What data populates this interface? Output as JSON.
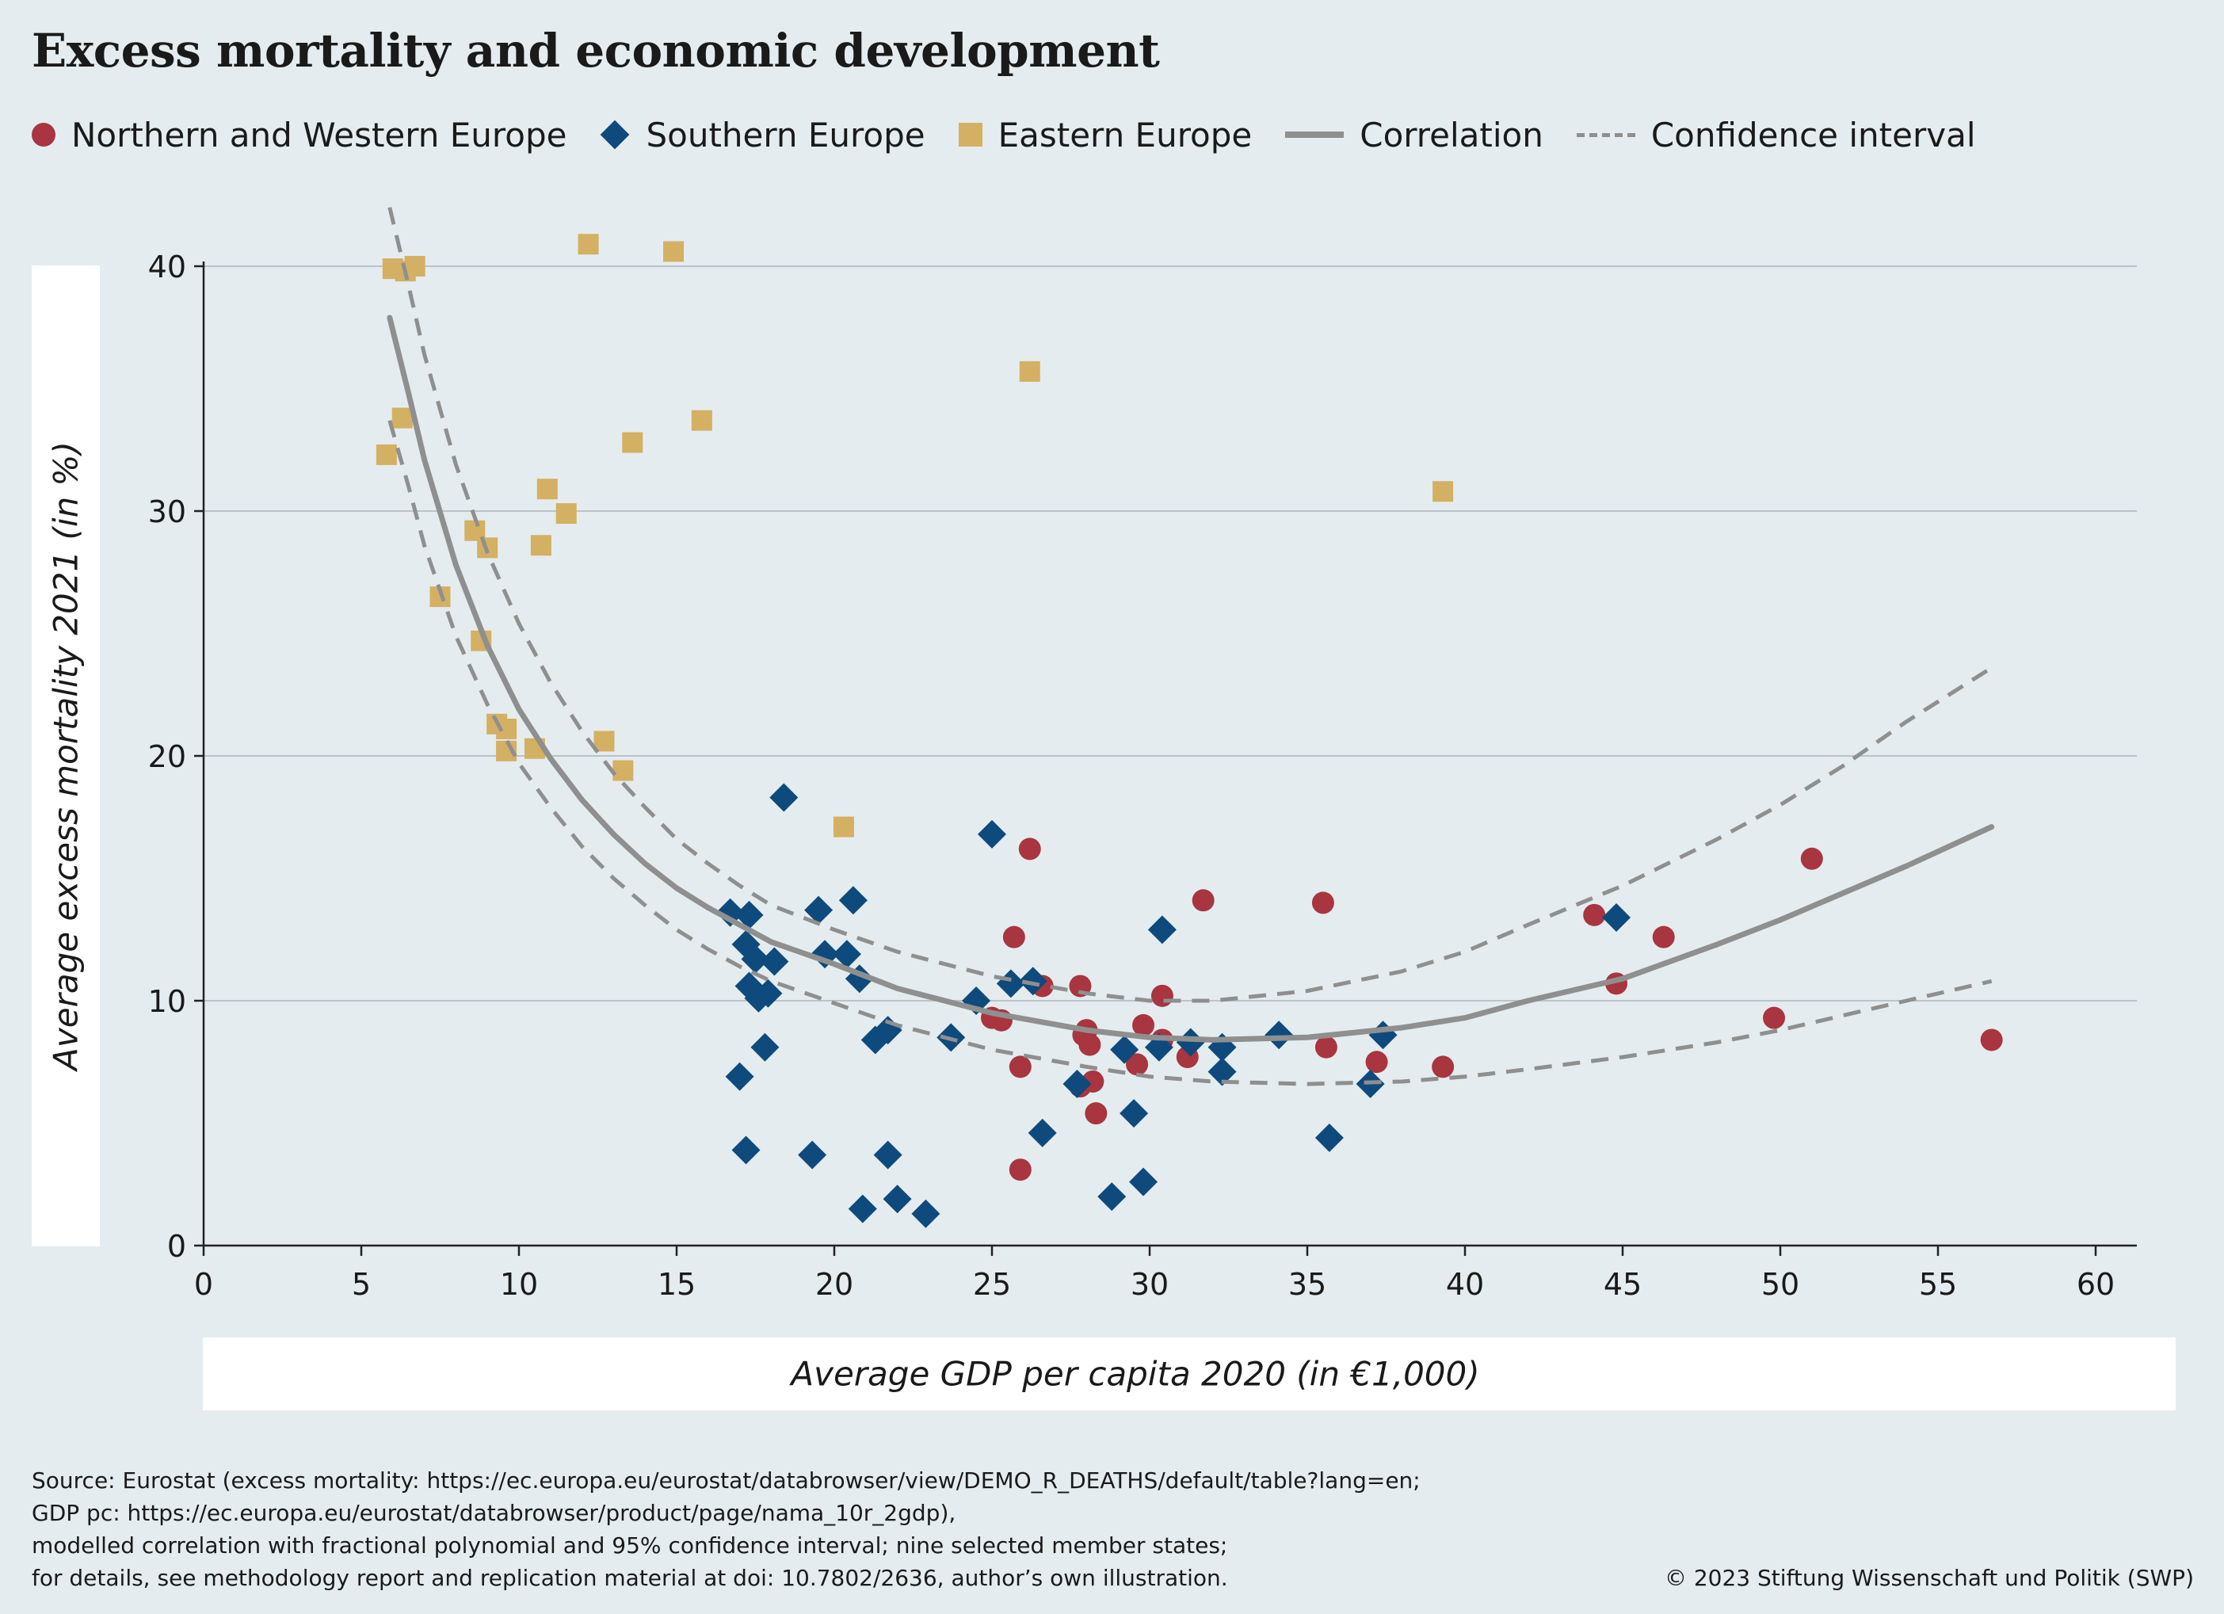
{
  "title": "Excess mortality and economic development",
  "legend": {
    "nw": "Northern and Western Europe",
    "south": "Southern Europe",
    "east": "Eastern Europe",
    "corr": "Correlation",
    "ci": "Confidence interval"
  },
  "colors": {
    "nw": "#a8353f",
    "south": "#0f4a7d",
    "east": "#d4b063",
    "curve": "#8f8f8f",
    "grid": "#b9c3c8",
    "axis": "#222222"
  },
  "source": [
    "Source: Eurostat (excess mortality: https://ec.europa.eu/eurostat/databrowser/view/DEMO_R_DEATHS/default/table?lang=en;",
    "GDP pc: https://ec.europa.eu/eurostat/databrowser/product/page/nama_10r_2gdp),",
    "modelled correlation with fractional polynomial and 95% confidence interval; nine selected member states;",
    "for details, see methodology report and replication material at doi: 10.7802/2636, author’s own illustration."
  ],
  "copyright": "© 2023 Stiftung Wissenschaft und Politik (SWP)",
  "chart_data": {
    "type": "scatter",
    "xlabel": "Average GDP per capita 2020 (in €1,000)",
    "ylabel": "Average excess mortality 2021 (in %)",
    "xlim": [
      0,
      61
    ],
    "ylim": [
      0,
      42
    ],
    "xticks": [
      0,
      5,
      10,
      15,
      20,
      25,
      30,
      35,
      40,
      45,
      50,
      55,
      60
    ],
    "yticks": [
      0,
      10,
      20,
      30,
      40
    ],
    "grid": "horizontal",
    "legend_position": "top",
    "series": [
      {
        "name": "Northern and Western Europe",
        "marker": "circle",
        "points": [
          [
            26.2,
            16.2
          ],
          [
            25.7,
            12.6
          ],
          [
            31.7,
            14.1
          ],
          [
            35.5,
            14.0
          ],
          [
            44.1,
            13.5
          ],
          [
            46.3,
            12.6
          ],
          [
            51.0,
            15.8
          ],
          [
            44.8,
            10.7
          ],
          [
            27.8,
            10.6
          ],
          [
            26.6,
            10.6
          ],
          [
            30.4,
            10.2
          ],
          [
            49.8,
            9.3
          ],
          [
            56.7,
            8.4
          ],
          [
            25.0,
            9.3
          ],
          [
            25.3,
            9.2
          ],
          [
            29.8,
            9.0
          ],
          [
            28.0,
            8.8
          ],
          [
            27.9,
            8.6
          ],
          [
            28.1,
            8.2
          ],
          [
            30.4,
            8.4
          ],
          [
            31.2,
            7.7
          ],
          [
            35.6,
            8.1
          ],
          [
            25.9,
            7.3
          ],
          [
            29.6,
            7.4
          ],
          [
            37.2,
            7.5
          ],
          [
            39.3,
            7.3
          ],
          [
            27.8,
            6.5
          ],
          [
            28.2,
            6.7
          ],
          [
            28.3,
            5.4
          ],
          [
            25.9,
            3.1
          ]
        ]
      },
      {
        "name": "Southern Europe",
        "marker": "diamond",
        "points": [
          [
            18.4,
            18.3
          ],
          [
            25.0,
            16.8
          ],
          [
            16.7,
            13.6
          ],
          [
            17.3,
            13.5
          ],
          [
            19.5,
            13.7
          ],
          [
            20.6,
            14.1
          ],
          [
            30.4,
            12.9
          ],
          [
            44.8,
            13.4
          ],
          [
            17.2,
            12.3
          ],
          [
            17.5,
            11.7
          ],
          [
            18.1,
            11.6
          ],
          [
            19.7,
            11.9
          ],
          [
            20.4,
            11.9
          ],
          [
            20.8,
            10.9
          ],
          [
            17.3,
            10.6
          ],
          [
            17.9,
            10.3
          ],
          [
            17.6,
            10.1
          ],
          [
            25.6,
            10.7
          ],
          [
            26.3,
            10.8
          ],
          [
            24.5,
            10.0
          ],
          [
            21.7,
            8.8
          ],
          [
            21.3,
            8.4
          ],
          [
            23.7,
            8.5
          ],
          [
            29.2,
            8.0
          ],
          [
            30.3,
            8.1
          ],
          [
            31.3,
            8.3
          ],
          [
            32.3,
            8.1
          ],
          [
            32.3,
            7.1
          ],
          [
            34.1,
            8.6
          ],
          [
            37.4,
            8.6
          ],
          [
            17.8,
            8.1
          ],
          [
            17.0,
            6.9
          ],
          [
            27.7,
            6.6
          ],
          [
            37.0,
            6.6
          ],
          [
            26.6,
            4.6
          ],
          [
            29.5,
            5.4
          ],
          [
            35.7,
            4.4
          ],
          [
            17.2,
            3.9
          ],
          [
            19.3,
            3.7
          ],
          [
            21.7,
            3.7
          ],
          [
            28.8,
            2.0
          ],
          [
            29.8,
            2.6
          ],
          [
            20.9,
            1.5
          ],
          [
            22.0,
            1.9
          ],
          [
            22.9,
            1.3
          ]
        ]
      },
      {
        "name": "Eastern Europe",
        "marker": "square",
        "points": [
          [
            6.0,
            39.9
          ],
          [
            6.4,
            39.8
          ],
          [
            6.7,
            40.0
          ],
          [
            12.2,
            40.9
          ],
          [
            14.9,
            40.6
          ],
          [
            26.2,
            35.7
          ],
          [
            6.3,
            33.8
          ],
          [
            5.8,
            32.3
          ],
          [
            15.8,
            33.7
          ],
          [
            13.6,
            32.8
          ],
          [
            39.3,
            30.8
          ],
          [
            10.9,
            30.9
          ],
          [
            11.5,
            29.9
          ],
          [
            8.6,
            29.2
          ],
          [
            9.0,
            28.5
          ],
          [
            10.7,
            28.6
          ],
          [
            7.5,
            26.5
          ],
          [
            8.8,
            24.7
          ],
          [
            9.3,
            21.3
          ],
          [
            9.6,
            21.1
          ],
          [
            9.6,
            20.2
          ],
          [
            10.5,
            20.3
          ],
          [
            12.7,
            20.6
          ],
          [
            13.3,
            19.4
          ],
          [
            20.3,
            17.1
          ]
        ]
      }
    ],
    "correlation": [
      [
        5.9,
        37.9
      ],
      [
        6.5,
        34.8
      ],
      [
        7.0,
        32.1
      ],
      [
        8.0,
        27.8
      ],
      [
        9.0,
        24.5
      ],
      [
        10.0,
        21.9
      ],
      [
        11.0,
        19.9
      ],
      [
        12.0,
        18.2
      ],
      [
        13.0,
        16.8
      ],
      [
        14.0,
        15.6
      ],
      [
        15.0,
        14.6
      ],
      [
        16.0,
        13.8
      ],
      [
        17.0,
        13.1
      ],
      [
        18.0,
        12.4
      ],
      [
        20.0,
        11.5
      ],
      [
        22.0,
        10.5
      ],
      [
        25.0,
        9.5
      ],
      [
        28.0,
        8.8
      ],
      [
        30.0,
        8.5
      ],
      [
        32.0,
        8.4
      ],
      [
        35.0,
        8.5
      ],
      [
        38.0,
        8.9
      ],
      [
        40.0,
        9.3
      ],
      [
        42.0,
        10.0
      ],
      [
        45.0,
        10.9
      ],
      [
        48.0,
        12.3
      ],
      [
        50.0,
        13.3
      ],
      [
        52.0,
        14.4
      ],
      [
        54.0,
        15.5
      ],
      [
        56.7,
        17.1
      ]
    ],
    "ci_upper": [
      [
        5.9,
        42.4
      ],
      [
        6.5,
        39.2
      ],
      [
        7.0,
        36.4
      ],
      [
        8.0,
        31.9
      ],
      [
        9.0,
        28.3
      ],
      [
        10.0,
        25.4
      ],
      [
        11.0,
        23.0
      ],
      [
        12.0,
        21.0
      ],
      [
        13.0,
        19.3
      ],
      [
        14.0,
        17.9
      ],
      [
        15.0,
        16.6
      ],
      [
        16.0,
        15.6
      ],
      [
        17.0,
        14.7
      ],
      [
        18.0,
        13.9
      ],
      [
        20.0,
        12.9
      ],
      [
        22.0,
        12.0
      ],
      [
        25.0,
        11.0
      ],
      [
        28.0,
        10.3
      ],
      [
        30.0,
        10.0
      ],
      [
        32.0,
        10.0
      ],
      [
        35.0,
        10.4
      ],
      [
        38.0,
        11.2
      ],
      [
        40.0,
        12.0
      ],
      [
        42.0,
        13.1
      ],
      [
        45.0,
        14.7
      ],
      [
        48.0,
        16.6
      ],
      [
        50.0,
        18.0
      ],
      [
        52.0,
        19.6
      ],
      [
        54.0,
        21.4
      ],
      [
        56.7,
        23.6
      ]
    ],
    "ci_lower": [
      [
        5.9,
        33.7
      ],
      [
        6.5,
        31.0
      ],
      [
        7.0,
        28.6
      ],
      [
        8.0,
        24.9
      ],
      [
        9.0,
        22.1
      ],
      [
        10.0,
        19.7
      ],
      [
        11.0,
        17.9
      ],
      [
        12.0,
        16.3
      ],
      [
        13.0,
        15.0
      ],
      [
        14.0,
        13.9
      ],
      [
        15.0,
        12.9
      ],
      [
        16.0,
        12.1
      ],
      [
        17.0,
        11.4
      ],
      [
        18.0,
        10.8
      ],
      [
        20.0,
        9.9
      ],
      [
        22.0,
        9.0
      ],
      [
        25.0,
        8.0
      ],
      [
        28.0,
        7.3
      ],
      [
        30.0,
        6.9
      ],
      [
        32.0,
        6.7
      ],
      [
        35.0,
        6.6
      ],
      [
        38.0,
        6.7
      ],
      [
        40.0,
        6.9
      ],
      [
        42.0,
        7.2
      ],
      [
        45.0,
        7.7
      ],
      [
        48.0,
        8.3
      ],
      [
        50.0,
        8.8
      ],
      [
        52.0,
        9.4
      ],
      [
        54.0,
        10.0
      ],
      [
        56.7,
        10.8
      ]
    ]
  }
}
